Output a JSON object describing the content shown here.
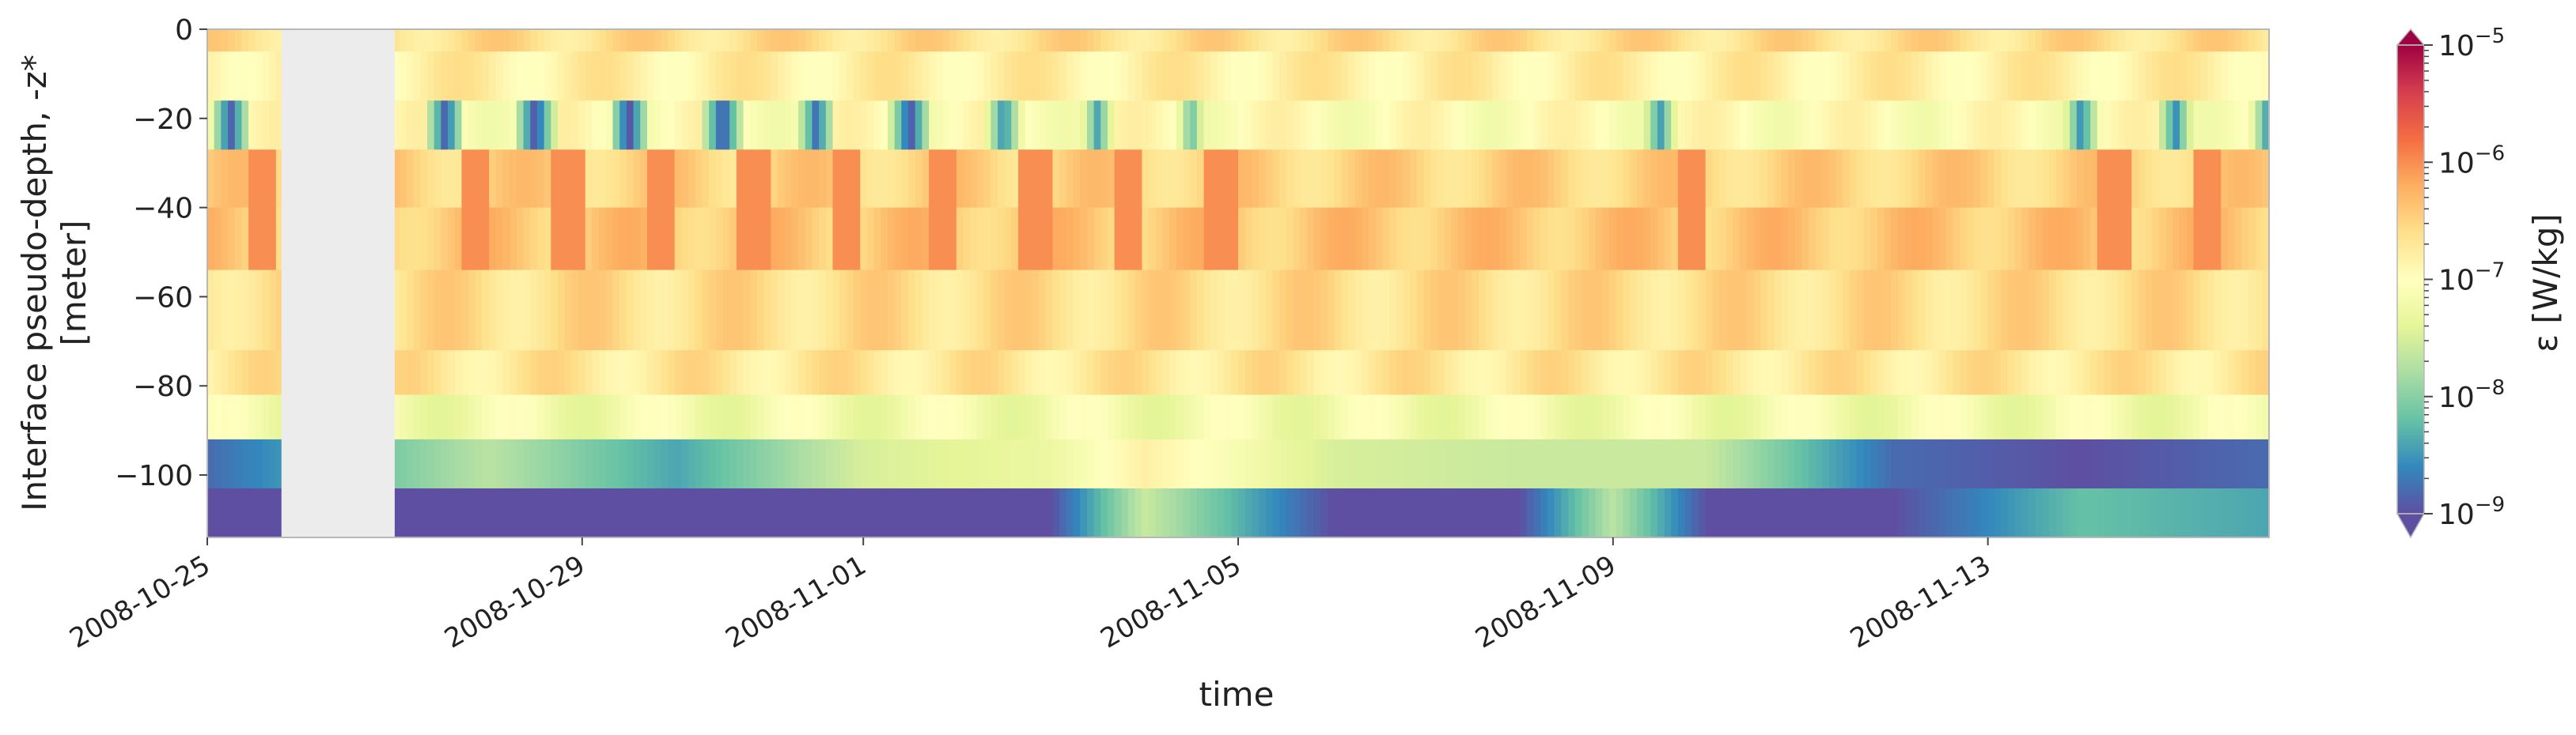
{
  "chart_data": {
    "type": "heatmap",
    "title": "",
    "xlabel": "time",
    "ylabel_lines": [
      "Interface pseudo-depth, -z*",
      "[meter]"
    ],
    "x_range": [
      "2008-10-25",
      "2008-11-16T00:00"
    ],
    "x_ticks": [
      "2008-10-25",
      "2008-10-29",
      "2008-11-01",
      "2008-11-05",
      "2008-11-09",
      "2008-11-13"
    ],
    "y_range": [
      -114,
      0
    ],
    "y_ticks": [
      0,
      -20,
      -40,
      -60,
      -80,
      -100
    ],
    "missing_interval": [
      "2008-10-25T19:00",
      "2008-10-27T00:00"
    ],
    "grid": false,
    "colormap": "Spectral_r",
    "colormap_stops": [
      "#5e4fa2",
      "#3288bd",
      "#66c2a5",
      "#abdda4",
      "#e6f598",
      "#ffffbf",
      "#fee08b",
      "#fdae61",
      "#f46d43",
      "#d53e4f",
      "#9e0142"
    ],
    "colorbar": {
      "label": "ε [W/kg]",
      "scale": "log",
      "range": [
        1e-09,
        1e-05
      ],
      "tick_base": "10",
      "tick_exponents": [
        "−9",
        "−8",
        "−7",
        "−6",
        "−5"
      ],
      "extend": "both"
    },
    "layers": [
      {
        "top": 0,
        "bottom": -5,
        "log10_eps": -6.6
      },
      {
        "top": -5,
        "bottom": -16,
        "log10_eps": -6.8
      },
      {
        "top": -16,
        "bottom": -27,
        "log10_eps": -7.0
      },
      {
        "top": -27,
        "bottom": -40,
        "log10_eps": -6.5
      },
      {
        "top": -40,
        "bottom": -54,
        "log10_eps": -6.4
      },
      {
        "top": -54,
        "bottom": -72,
        "log10_eps": -6.6
      },
      {
        "top": -72,
        "bottom": -82,
        "log10_eps": -6.7
      },
      {
        "top": -82,
        "bottom": -92,
        "log10_eps": -7.2
      },
      {
        "top": -92,
        "bottom": -103,
        "log10_eps": -7.8
      },
      {
        "top": -103,
        "bottom": -114,
        "log10_eps": -8.6
      }
    ],
    "deep_layer_profile": [
      {
        "date": "2008-10-25",
        "log10_eps_92_103": -8.8,
        "log10_eps_103_114": -9.0
      },
      {
        "date": "2008-10-28",
        "log10_eps_92_103": -7.7,
        "log10_eps_103_114": -9.0
      },
      {
        "date": "2008-10-30",
        "log10_eps_92_103": -8.4,
        "log10_eps_103_114": -9.0
      },
      {
        "date": "2008-11-01",
        "log10_eps_92_103": -7.5,
        "log10_eps_103_114": -9.0
      },
      {
        "date": "2008-11-03",
        "log10_eps_92_103": -7.3,
        "log10_eps_103_114": -9.0
      },
      {
        "date": "2008-11-04",
        "log10_eps_92_103": -6.8,
        "log10_eps_103_114": -7.6
      },
      {
        "date": "2008-11-06",
        "log10_eps_92_103": -7.5,
        "log10_eps_103_114": -9.0
      },
      {
        "date": "2008-11-08",
        "log10_eps_92_103": -7.6,
        "log10_eps_103_114": -9.0
      },
      {
        "date": "2008-11-09",
        "log10_eps_92_103": -7.6,
        "log10_eps_103_114": -7.7
      },
      {
        "date": "2008-11-10",
        "log10_eps_92_103": -7.6,
        "log10_eps_103_114": -9.0
      },
      {
        "date": "2008-11-12",
        "log10_eps_92_103": -8.8,
        "log10_eps_103_114": -9.0
      },
      {
        "date": "2008-11-14",
        "log10_eps_92_103": -9.0,
        "log10_eps_103_114": -8.2
      },
      {
        "date": "2008-11-16",
        "log10_eps_92_103": -8.8,
        "log10_eps_103_114": -8.4
      }
    ],
    "daily_events": [
      {
        "date": "2008-10-25T06:00",
        "log10_eps": -8.9
      },
      {
        "date": "2008-10-27T13:00",
        "log10_eps": -8.9
      },
      {
        "date": "2008-10-28T12:00",
        "log10_eps": -9.0
      },
      {
        "date": "2008-10-29T12:00",
        "log10_eps": -9.0
      },
      {
        "date": "2008-10-30T12:00",
        "log10_eps": -9.0
      },
      {
        "date": "2008-10-31T12:00",
        "log10_eps": -8.8
      },
      {
        "date": "2008-11-01T12:00",
        "log10_eps": -9.0
      },
      {
        "date": "2008-11-02T12:00",
        "log10_eps": -8.6
      },
      {
        "date": "2008-11-03T12:00",
        "log10_eps": -8.4
      },
      {
        "date": "2008-11-04T12:00",
        "log10_eps": -8.2
      },
      {
        "date": "2008-11-09T12:00",
        "log10_eps": -8.5
      },
      {
        "date": "2008-11-14T00:00",
        "log10_eps": -8.6
      },
      {
        "date": "2008-11-15T00:00",
        "log10_eps": -8.6
      },
      {
        "date": "2008-11-16T00:00",
        "log10_eps": -8.6
      }
    ]
  }
}
